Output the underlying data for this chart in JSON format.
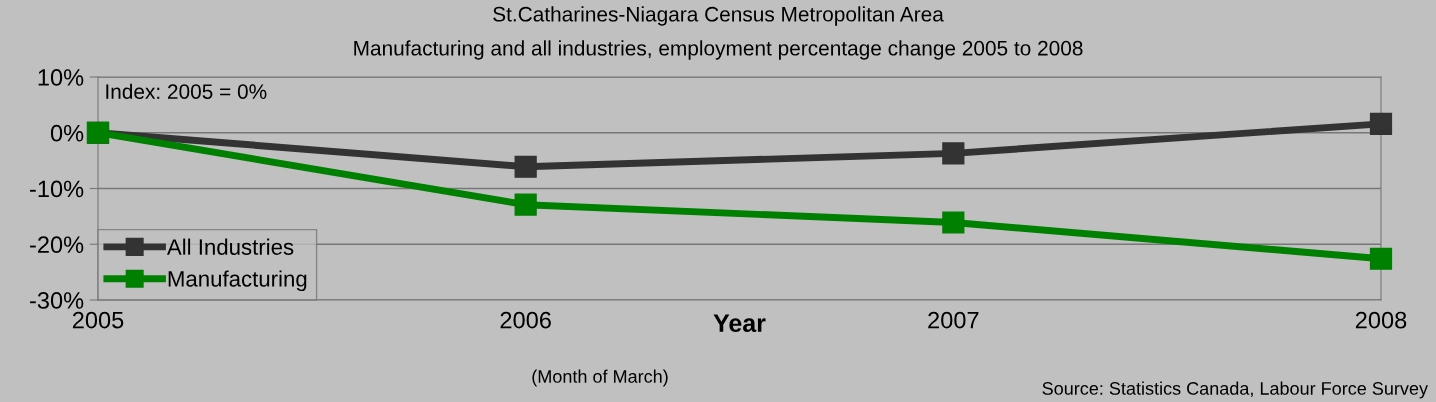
{
  "chart_data": {
    "type": "line",
    "title": "St.Catharines-Niagara Census Metropolitan Area",
    "subtitle": "Manufacturing and all industries, employment percentage change 2005 to 2008",
    "xlabel": "Year",
    "categories": [
      "2005",
      "2006",
      "2007",
      "2008"
    ],
    "series": [
      {
        "name": "All Industries",
        "color": "#333333",
        "values": [
          0,
          -6.1,
          -3.7,
          1.6
        ]
      },
      {
        "name": "Manufacturing",
        "color": "#008000",
        "values": [
          0,
          -12.9,
          -16.1,
          -22.6
        ]
      }
    ],
    "ylim": [
      -30,
      10
    ],
    "yticks": [
      {
        "value": -30,
        "label": "-30%"
      },
      {
        "value": -20,
        "label": "-20%"
      },
      {
        "value": -10,
        "label": "-10%"
      },
      {
        "value": 0,
        "label": "0%"
      },
      {
        "value": 10,
        "label": "10%"
      }
    ],
    "grid": "y",
    "legend": "bottom left",
    "marker": "square",
    "line_style": "solid",
    "annotations": [
      "Index: 2005 = 0%",
      "(Month of March)",
      "Source: Statistics Canada, Labour Force Survey"
    ]
  }
}
